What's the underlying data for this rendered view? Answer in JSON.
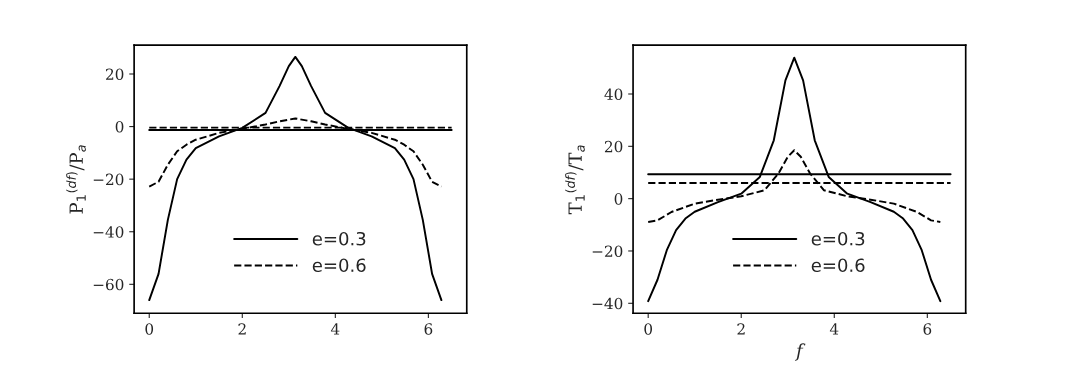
{
  "chart_data": [
    {
      "type": "line",
      "ylabel": "P$_{1}$$^{(df)}$/P$_{a}$",
      "xlim": [
        -0.325,
        6.825
      ],
      "xticks": [
        0,
        2,
        4,
        6
      ],
      "ylim": [
        -71,
        31
      ],
      "yticks": [
        {
          "value": -60,
          "label": "−60"
        },
        {
          "value": -40,
          "label": "−40"
        },
        {
          "value": -20,
          "label": "−20"
        },
        0,
        20
      ],
      "legend": "bottom",
      "grid": false,
      "series": [
        {
          "name": "e=0.3",
          "color": "#000000",
          "line_style": "solid",
          "x": [
            0,
            0.2,
            0.4,
            0.6,
            0.8,
            1.0,
            1.5,
            2.0,
            2.5,
            2.8,
            3.0,
            3.14,
            3.28,
            3.48,
            3.78,
            4.28,
            4.78,
            5.28,
            5.48,
            5.68,
            5.88,
            6.08,
            6.28
          ],
          "values": [
            -66,
            -56,
            -35.5,
            -20,
            -12.6,
            -8.2,
            -3.7,
            -0.5,
            5.2,
            15.4,
            23,
            26.5,
            23,
            15.4,
            5.2,
            -0.5,
            -3.7,
            -8.2,
            -12.6,
            -20,
            -35.5,
            -56,
            -66
          ]
        },
        {
          "name": "e=0.6",
          "color": "#000000",
          "line_style": "dashed",
          "x": [
            0,
            0.2,
            0.4,
            0.6,
            0.8,
            1.0,
            1.5,
            2.0,
            2.5,
            2.8,
            3.14,
            3.48,
            3.78,
            4.28,
            4.78,
            5.28,
            5.48,
            5.68,
            5.88,
            6.08,
            6.28
          ],
          "values": [
            -22.8,
            -21,
            -14.5,
            -9.4,
            -6.9,
            -5,
            -2.4,
            -0.9,
            0.8,
            2,
            3.1,
            2,
            0.8,
            -0.9,
            -2.4,
            -5,
            -6.9,
            -9.4,
            -14.5,
            -21,
            -22.8
          ]
        },
        {
          "color": "#000000",
          "line_style": "solid",
          "x": [
            0,
            6.5
          ],
          "values": [
            -1.3,
            -1.3
          ]
        },
        {
          "color": "#000000",
          "line_style": "dashed",
          "x": [
            0,
            6.5
          ],
          "values": [
            -0.4,
            -0.4
          ]
        }
      ]
    },
    {
      "type": "line",
      "xlabel": "f",
      "ylabel": "T$_{1}$$^{(df)}$/T$_{a}$",
      "xlim": [
        -0.325,
        6.825
      ],
      "xticks": [
        0,
        2,
        4,
        6
      ],
      "ylim": [
        -43.8,
        58.7
      ],
      "yticks": [
        {
          "value": -40,
          "label": "−40"
        },
        {
          "value": -20,
          "label": "−20"
        },
        0,
        20,
        40
      ],
      "legend": "bottom",
      "grid": false,
      "series": [
        {
          "name": "e=0.3",
          "color": "#000000",
          "line_style": "solid",
          "x": [
            0,
            0.2,
            0.4,
            0.6,
            0.8,
            1.0,
            1.5,
            2.0,
            2.4,
            2.7,
            2.95,
            3.14,
            3.33,
            3.58,
            3.88,
            4.28,
            4.78,
            5.28,
            5.48,
            5.68,
            5.88,
            6.08,
            6.28
          ],
          "values": [
            -39.2,
            -31,
            -19.7,
            -12,
            -7.6,
            -5,
            -1.3,
            1.9,
            8.3,
            22.3,
            45.2,
            53.9,
            45.2,
            22.3,
            8.3,
            1.9,
            -1.3,
            -5,
            -7.6,
            -12,
            -19.7,
            -31,
            -39.2
          ]
        },
        {
          "name": "e=0.6",
          "color": "#000000",
          "line_style": "dashed",
          "x": [
            0,
            0.2,
            0.5,
            1.0,
            1.5,
            2.0,
            2.5,
            2.8,
            3.0,
            3.14,
            3.28,
            3.48,
            3.78,
            4.28,
            4.78,
            5.28,
            5.78,
            6.08,
            6.28
          ],
          "values": [
            -8.9,
            -8.3,
            -5.1,
            -1.9,
            -0.4,
            0.9,
            3.2,
            9.6,
            16,
            18.5,
            16,
            9.6,
            3.2,
            0.9,
            -0.4,
            -1.9,
            -5.1,
            -8.3,
            -8.9
          ]
        },
        {
          "color": "#000000",
          "line_style": "solid",
          "x": [
            0,
            6.5
          ],
          "values": [
            9.3,
            9.3
          ]
        },
        {
          "color": "#000000",
          "line_style": "dashed",
          "x": [
            0,
            6.5
          ],
          "values": [
            6.0,
            6.0
          ]
        }
      ]
    }
  ]
}
